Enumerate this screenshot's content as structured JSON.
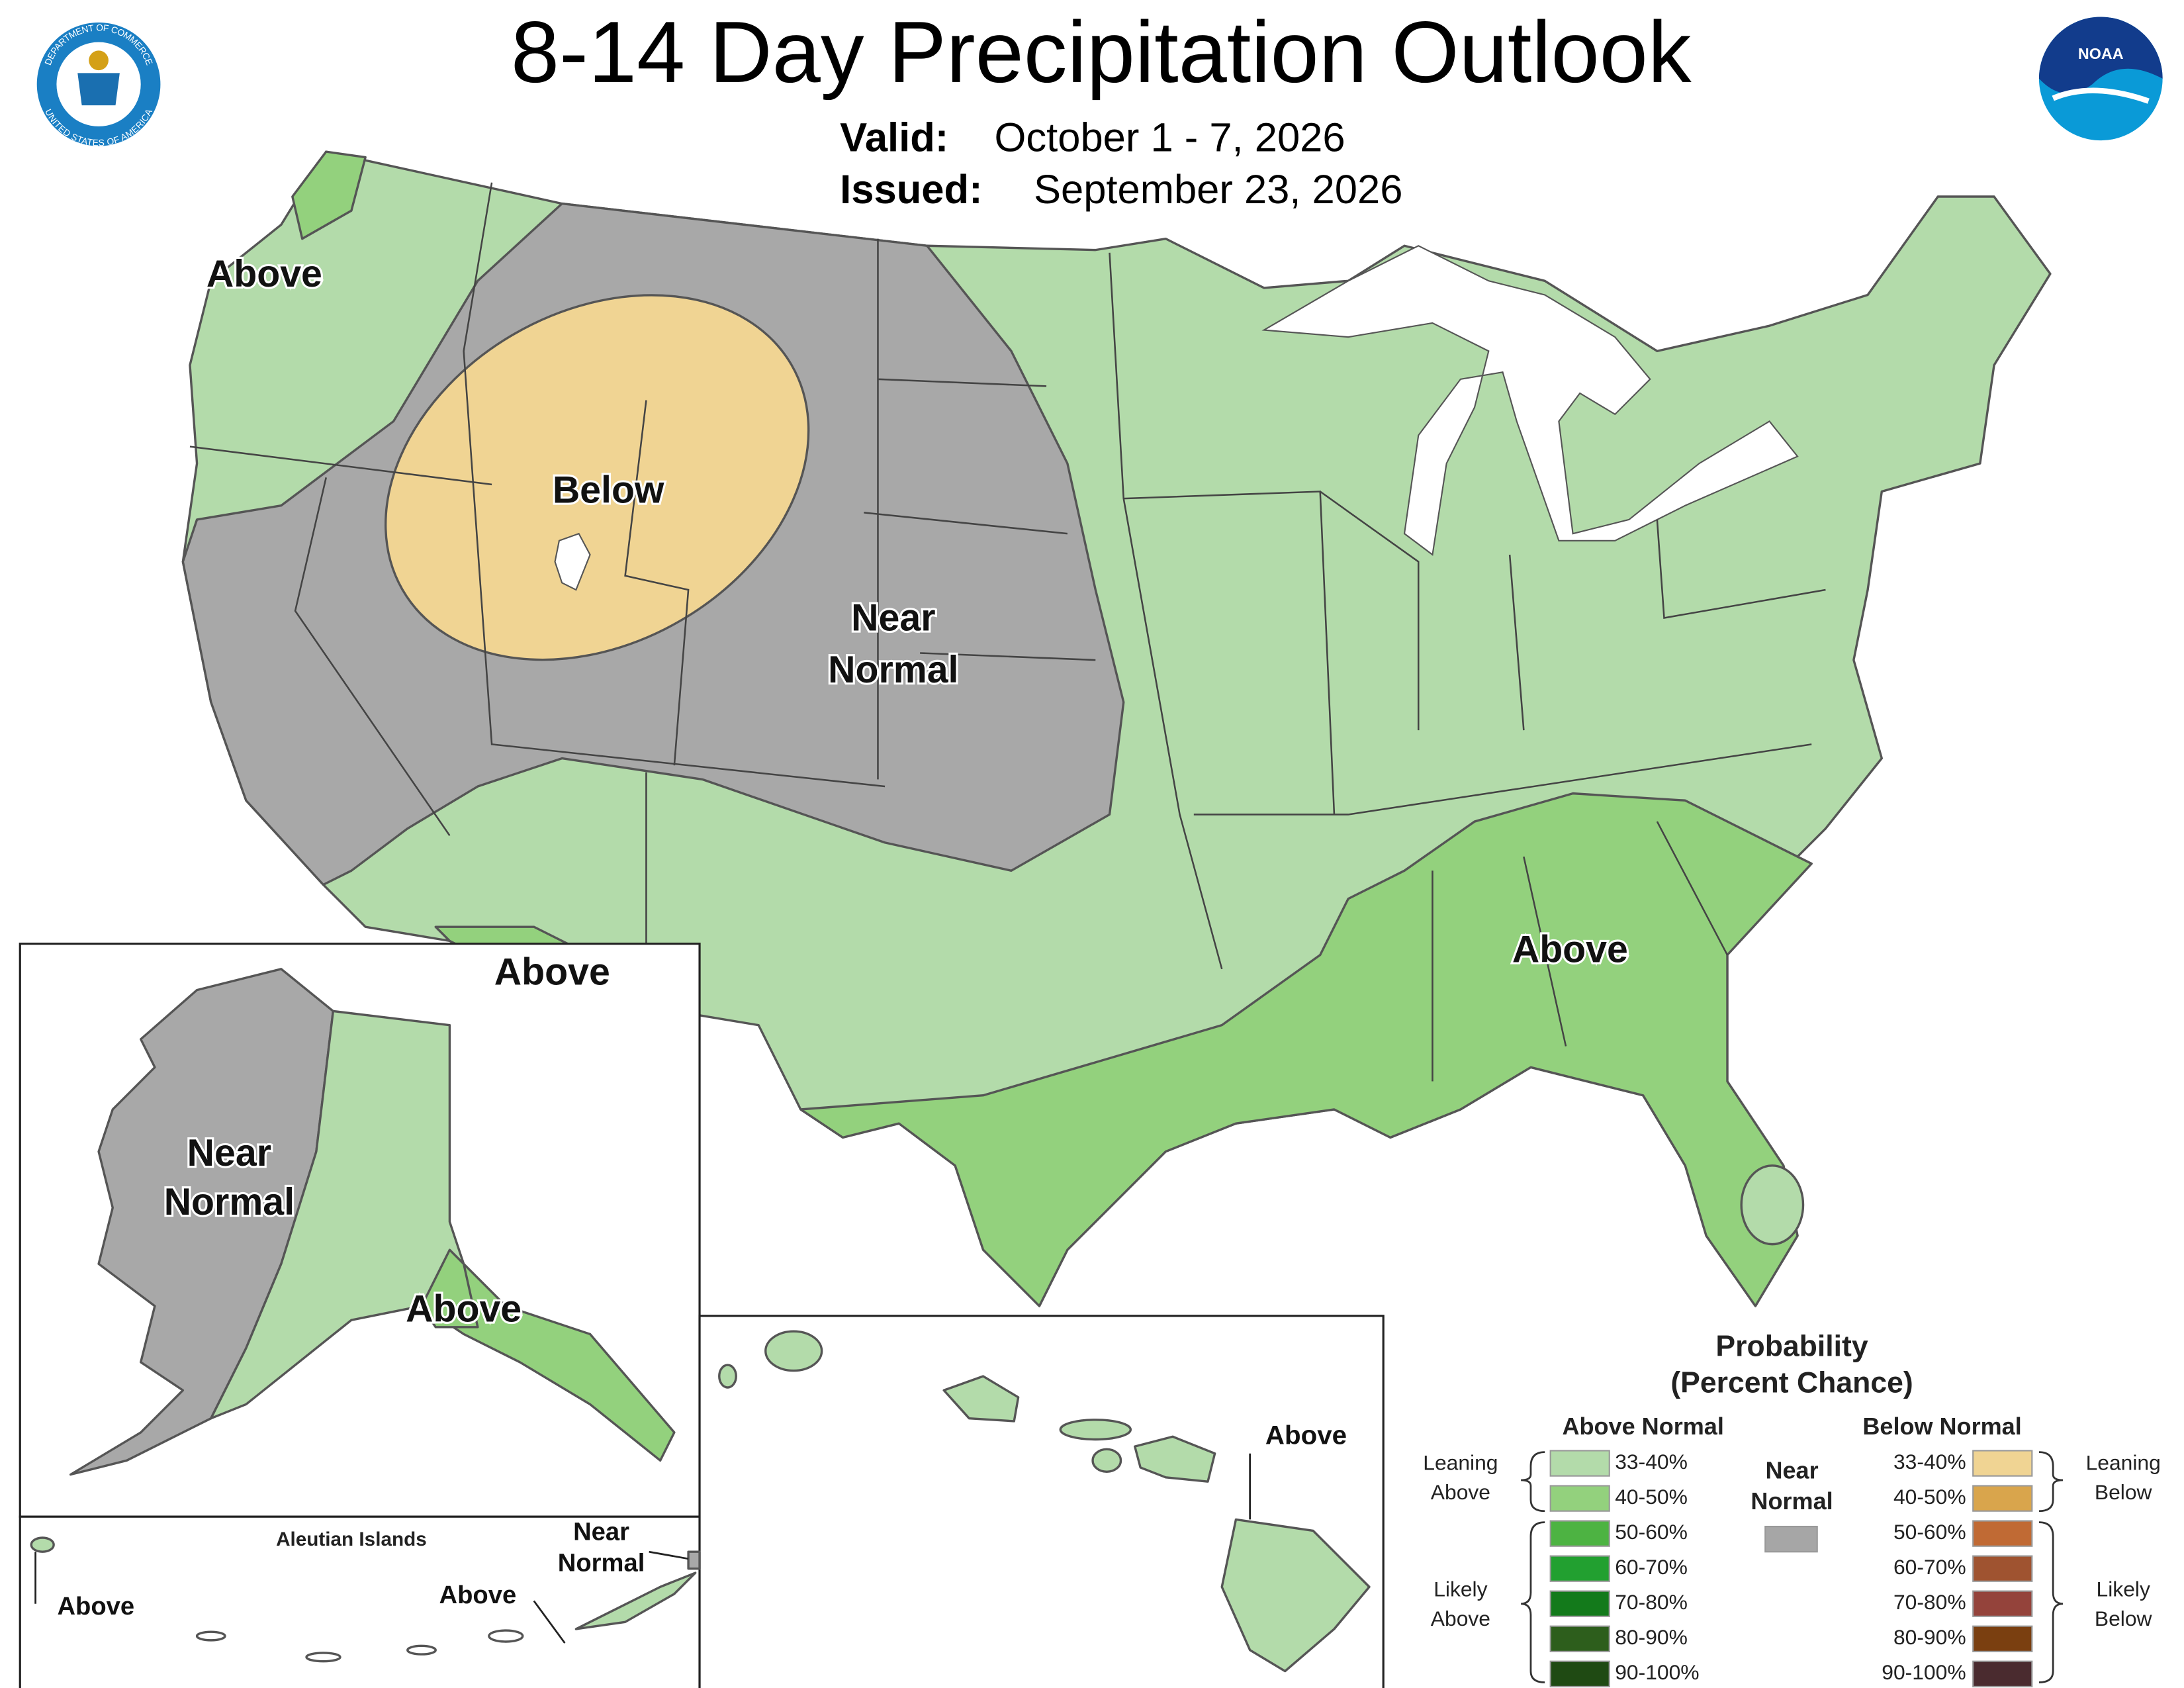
{
  "header": {
    "title": "8-14 Day Precipitation Outlook",
    "valid_label": "Valid:",
    "valid": "October 1 - 7, 2026",
    "issued_label": "Issued:",
    "issued": "September 23, 2026"
  },
  "logos": {
    "commerce_top": "DEPARTMENT OF COMMERCE",
    "commerce_bottom": "UNITED STATES OF AMERICA",
    "noaa": "NOAA"
  },
  "map_labels": [
    {
      "lines": [
        "Above"
      ]
    },
    {
      "lines": [
        "Below"
      ]
    },
    {
      "lines": [
        "Near",
        "Normal"
      ]
    },
    {
      "lines": [
        "Above"
      ]
    },
    {
      "lines": [
        "Above"
      ]
    }
  ],
  "alaska": {
    "labels": [
      {
        "lines": [
          "Near",
          "Normal"
        ]
      },
      {
        "lines": [
          "Above"
        ]
      }
    ]
  },
  "aleutian": {
    "title": "Aleutian Islands",
    "labels": [
      {
        "lines": [
          "Above"
        ]
      },
      {
        "lines": [
          "Above"
        ]
      },
      {
        "lines": [
          "Near",
          "Normal"
        ]
      }
    ]
  },
  "hawaii": {
    "labels": [
      {
        "lines": [
          "Above"
        ]
      }
    ]
  },
  "legend": {
    "title": "Probability",
    "subtitle": "(Percent Chance)",
    "above_header": "Above Normal",
    "below_header": "Below Normal",
    "near": {
      "lines": [
        "Near",
        "Normal"
      ],
      "color": "#a6a6a6"
    },
    "above_ranges": [
      {
        "label": "33-40%",
        "color": "#b3dbaa"
      },
      {
        "label": "40-50%",
        "color": "#93d17d"
      },
      {
        "label": "50-60%",
        "color": "#4db342"
      },
      {
        "label": "60-70%",
        "color": "#22a030"
      },
      {
        "label": "70-80%",
        "color": "#137a1b"
      },
      {
        "label": "80-90%",
        "color": "#2d5e1c"
      },
      {
        "label": "90-100%",
        "color": "#1f4a13"
      }
    ],
    "below_ranges": [
      {
        "label": "33-40%",
        "color": "#f0d493"
      },
      {
        "label": "40-50%",
        "color": "#d9a54c"
      },
      {
        "label": "50-60%",
        "color": "#c06a34"
      },
      {
        "label": "60-70%",
        "color": "#9f5330"
      },
      {
        "label": "70-80%",
        "color": "#94433b"
      },
      {
        "label": "80-90%",
        "color": "#7a3f10"
      },
      {
        "label": "90-100%",
        "color": "#4a2b2f"
      }
    ],
    "left_brackets": [
      {
        "lines": [
          "Leaning",
          "Above"
        ]
      },
      {
        "lines": [
          "Likely",
          "Above"
        ]
      }
    ],
    "right_brackets": [
      {
        "lines": [
          "Leaning",
          "Below"
        ]
      },
      {
        "lines": [
          "Likely",
          "Below"
        ]
      }
    ]
  }
}
